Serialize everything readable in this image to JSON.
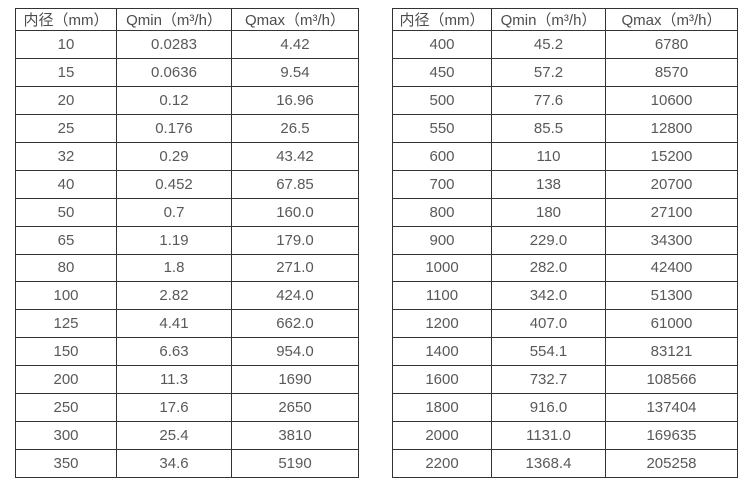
{
  "colors": {
    "background": "#ffffff",
    "table_border": "#333333",
    "cell_text": "#595959",
    "header_text": "#4d4d4d"
  },
  "tables": [
    {
      "name": "small-diameter-flow-ranges",
      "headers": [
        "内径（mm）",
        "Qmin（m³/h）",
        "Qmax（m³/h）"
      ],
      "rows": [
        [
          "10",
          "0.0283",
          "4.42"
        ],
        [
          "15",
          "0.0636",
          "9.54"
        ],
        [
          "20",
          "0.12",
          "16.96"
        ],
        [
          "25",
          "0.176",
          "26.5"
        ],
        [
          "32",
          "0.29",
          "43.42"
        ],
        [
          "40",
          "0.452",
          "67.85"
        ],
        [
          "50",
          "0.7",
          "160.0"
        ],
        [
          "65",
          "1.19",
          "179.0"
        ],
        [
          "80",
          "1.8",
          "271.0"
        ],
        [
          "100",
          "2.82",
          "424.0"
        ],
        [
          "125",
          "4.41",
          "662.0"
        ],
        [
          "150",
          "6.63",
          "954.0"
        ],
        [
          "200",
          "11.3",
          "1690"
        ],
        [
          "250",
          "17.6",
          "2650"
        ],
        [
          "300",
          "25.4",
          "3810"
        ],
        [
          "350",
          "34.6",
          "5190"
        ]
      ]
    },
    {
      "name": "large-diameter-flow-ranges",
      "headers": [
        "内径（mm）",
        "Qmin（m³/h）",
        "Qmax（m³/h）"
      ],
      "rows": [
        [
          "400",
          "45.2",
          "6780"
        ],
        [
          "450",
          "57.2",
          "8570"
        ],
        [
          "500",
          "77.6",
          "10600"
        ],
        [
          "550",
          "85.5",
          "12800"
        ],
        [
          "600",
          "110",
          "15200"
        ],
        [
          "700",
          "138",
          "20700"
        ],
        [
          "800",
          "180",
          "27100"
        ],
        [
          "900",
          "229.0",
          "34300"
        ],
        [
          "1000",
          "282.0",
          "42400"
        ],
        [
          "1100",
          "342.0",
          "51300"
        ],
        [
          "1200",
          "407.0",
          "61000"
        ],
        [
          "1400",
          "554.1",
          "83121"
        ],
        [
          "1600",
          "732.7",
          "108566"
        ],
        [
          "1800",
          "916.0",
          "137404"
        ],
        [
          "2000",
          "1131.0",
          "169635"
        ],
        [
          "2200",
          "1368.4",
          "205258"
        ]
      ]
    }
  ]
}
